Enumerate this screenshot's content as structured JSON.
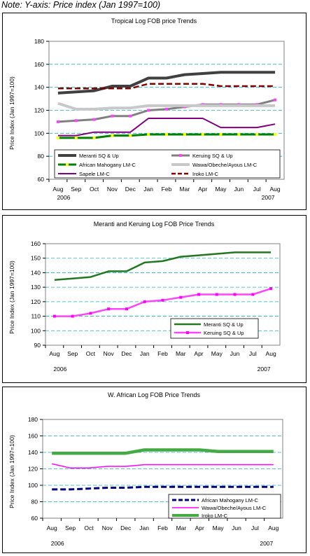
{
  "note": "Note: Y-axis: Price index (Jan 1997=100)",
  "chart_data": [
    {
      "type": "line",
      "title": "Tropical Log FOB price Trends",
      "ylabel": "Price Index (Jan 1997=100)",
      "xlabel": "",
      "categories": [
        "Aug",
        "Sep",
        "Oct",
        "Nov",
        "Dec",
        "Jan",
        "Feb",
        "Mar",
        "Apr",
        "May",
        "Jun",
        "Jul",
        "Aug"
      ],
      "year_labels": [
        {
          "text": "2006",
          "pos": 0
        },
        {
          "text": "2007",
          "pos": 12
        }
      ],
      "ylim": [
        60,
        180
      ],
      "yticks": [
        60,
        80,
        100,
        120,
        140,
        160,
        180
      ],
      "grid": "dashed horizontal",
      "legend_placement": "bottom",
      "series": [
        {
          "name": "Meranti SQ & Up",
          "color": "#404040",
          "dash": "solid",
          "width": 4,
          "marker": "none",
          "values": [
            135,
            136,
            137,
            141,
            141,
            148,
            148,
            151,
            152,
            153,
            153,
            153,
            153
          ]
        },
        {
          "name": "Keruing SQ & Up",
          "color": "#808080",
          "dash": "solid",
          "width": 3,
          "marker": "#ff44ff",
          "values": [
            110,
            111,
            112,
            115,
            115,
            120,
            121,
            123,
            125,
            125,
            125,
            125,
            129
          ]
        },
        {
          "name": "African Mahogany LM-C",
          "color": "#008000",
          "dash": "solid",
          "width": 3,
          "marker": "#ffff00",
          "values": [
            96,
            96,
            96,
            98,
            98,
            99,
            99,
            99,
            99,
            99,
            99,
            99,
            99
          ]
        },
        {
          "name": "Wawa/Obeche/Ayous LM-C",
          "color": "#c8c8c8",
          "dash": "solid",
          "width": 4,
          "marker": "none",
          "values": [
            126,
            121,
            121,
            122,
            122,
            124,
            124,
            124,
            124,
            124,
            124,
            124,
            124
          ]
        },
        {
          "name": "Sapele LM-C",
          "color": "#800080",
          "dash": "solid",
          "width": 2,
          "marker": "none",
          "values": [
            98,
            98,
            101,
            101,
            101,
            113,
            113,
            113,
            113,
            105,
            105,
            105,
            108
          ]
        },
        {
          "name": "Iroko LM-C",
          "color": "#800000",
          "dash": "dashed",
          "width": 2.5,
          "marker": "none",
          "values": [
            139,
            139,
            139,
            139,
            139,
            143,
            143,
            143,
            143,
            141,
            141,
            141,
            141
          ]
        }
      ]
    },
    {
      "type": "line",
      "title": "Meranti and Keruing Log FOB Price Trends",
      "ylabel": "Price Index (Jan 1997=100)",
      "xlabel": "",
      "categories": [
        "Aug",
        "Sep",
        "Oct",
        "Nov",
        "Dec",
        "Jan",
        "Feb",
        "Mar",
        "Apr",
        "May",
        "Jun",
        "Jul",
        "Aug"
      ],
      "year_labels": [
        {
          "text": "2006",
          "pos": 0
        },
        {
          "text": "2007",
          "pos": 12
        }
      ],
      "ylim": [
        90,
        160
      ],
      "yticks": [
        90,
        100,
        110,
        120,
        130,
        140,
        150,
        160
      ],
      "grid": "dashed horizontal",
      "legend_placement": "bottom-right",
      "series": [
        {
          "name": "Meranti SQ & Up",
          "color": "#227722",
          "dash": "solid",
          "width": 2.5,
          "marker": "none",
          "values": [
            135,
            136,
            137,
            141,
            141,
            147,
            148,
            151,
            152,
            153,
            154,
            154,
            154
          ]
        },
        {
          "name": "Keruing SQ & Up",
          "color": "#ff44ff",
          "dash": "solid",
          "width": 2.5,
          "marker": "#ff00ff",
          "values": [
            110,
            110,
            112,
            115,
            115,
            120,
            121,
            123,
            125,
            125,
            125,
            125,
            129
          ]
        }
      ]
    },
    {
      "type": "line",
      "title": "W. African Log FOB Price Trends",
      "ylabel": "Price Index (Jan 1997=100)",
      "xlabel": "",
      "categories": [
        "Aug",
        "Sep",
        "Oct",
        "Nov",
        "Dec",
        "Jan",
        "Feb",
        "Mar",
        "Apr",
        "May",
        "Jun",
        "Jul",
        "Aug"
      ],
      "year_labels": [
        {
          "text": "2006",
          "pos": 0
        },
        {
          "text": "2007",
          "pos": 12
        }
      ],
      "ylim": [
        60,
        180
      ],
      "yticks": [
        60,
        80,
        100,
        120,
        140,
        160,
        180
      ],
      "grid": "dashed horizontal",
      "legend_placement": "bottom-right",
      "series": [
        {
          "name": "African Mahogany LM-C",
          "color": "#000080",
          "dash": "dashed",
          "width": 3,
          "marker": "none",
          "values": [
            95,
            95,
            96,
            97,
            97,
            98,
            98,
            98,
            98,
            98,
            98,
            98,
            98
          ]
        },
        {
          "name": "Wawa/Obeche/Ayous LM-C",
          "color": "#ff00ff",
          "dash": "solid",
          "width": 1.5,
          "marker": "none",
          "values": [
            126,
            121,
            121,
            123,
            123,
            125,
            125,
            125,
            125,
            125,
            125,
            125,
            125
          ]
        },
        {
          "name": "Iroko LM-C",
          "color": "#44aa44",
          "dash": "solid",
          "width": 4.5,
          "marker": "none",
          "values": [
            139,
            139,
            139,
            139,
            139,
            143,
            143,
            143,
            143,
            141,
            141,
            141,
            141
          ]
        }
      ]
    }
  ]
}
